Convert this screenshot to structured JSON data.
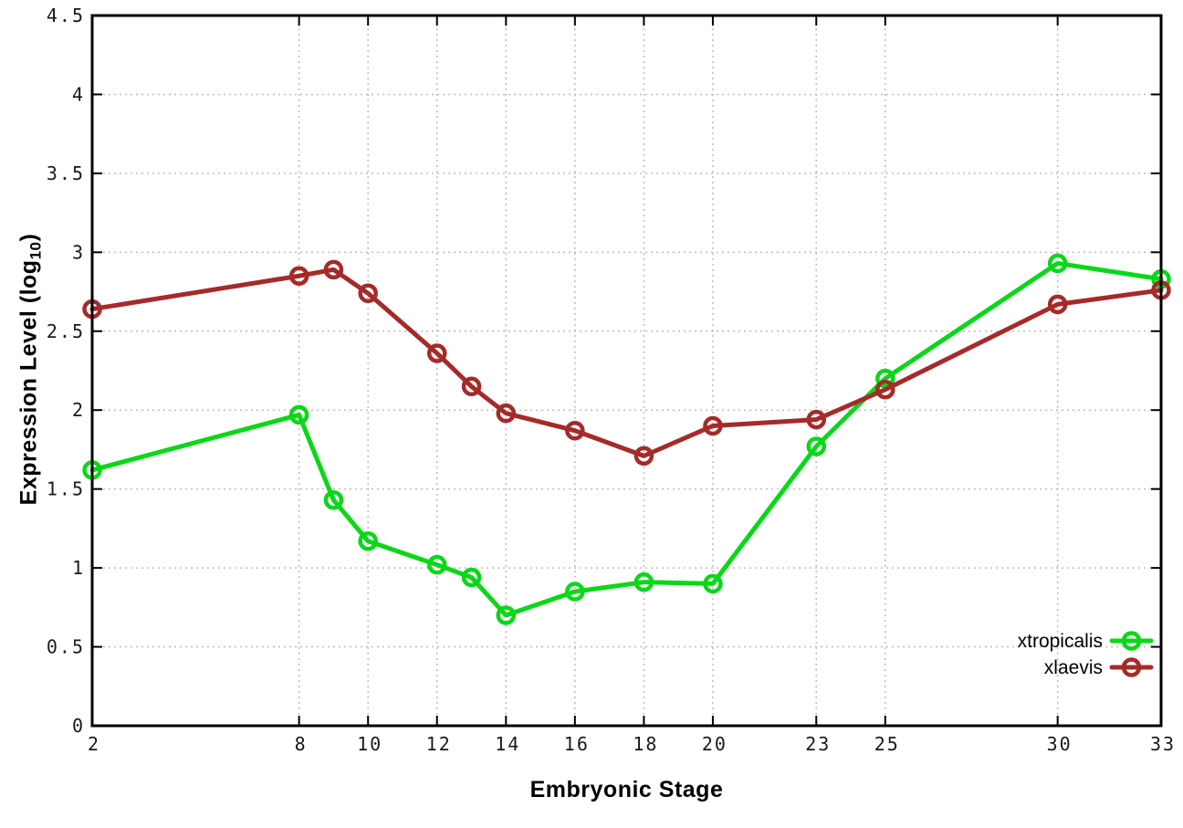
{
  "chart_data": {
    "type": "line",
    "title": "",
    "xlabel": "Embryonic Stage",
    "ylabel": "Expression Level (log10)",
    "ylabel_parts": {
      "main": "Expression Level (log",
      "sub": "10",
      "close": ")"
    },
    "x": [
      2,
      8,
      9,
      10,
      12,
      13,
      14,
      16,
      18,
      20,
      23,
      25,
      30,
      33
    ],
    "xticks": [
      2,
      8,
      10,
      12,
      14,
      16,
      18,
      20,
      23,
      25,
      30,
      33
    ],
    "yticks": [
      0,
      0.5,
      1,
      1.5,
      2,
      2.5,
      3,
      3.5,
      4,
      4.5
    ],
    "xlim": [
      2,
      33
    ],
    "ylim": [
      0,
      4.5
    ],
    "grid": true,
    "legend_position": "inside-bottom-right",
    "series": [
      {
        "name": "xtropicalis",
        "color": "#0ad718",
        "marker": "open-circle",
        "values": [
          1.62,
          1.97,
          1.43,
          1.17,
          1.02,
          0.94,
          0.7,
          0.85,
          0.91,
          0.9,
          1.77,
          2.2,
          2.93,
          2.83
        ]
      },
      {
        "name": "xlaevis",
        "color": "#a52a2a",
        "marker": "open-circle",
        "values": [
          2.64,
          2.85,
          2.89,
          2.74,
          2.36,
          2.15,
          1.98,
          1.87,
          1.71,
          1.9,
          1.94,
          2.13,
          2.67,
          2.76
        ]
      }
    ]
  },
  "style": {
    "grid_color": "#bdbdbd",
    "axis_color": "#000000",
    "tick_label_color": "#1a1a1a",
    "background": "#ffffff"
  }
}
